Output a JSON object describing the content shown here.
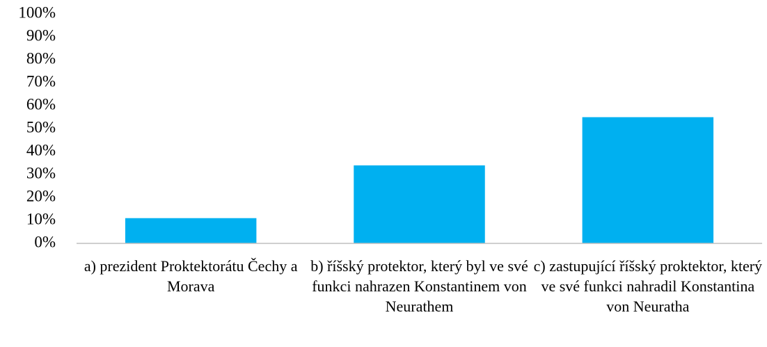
{
  "chart_data": {
    "type": "bar",
    "categories": [
      "a) prezident Proktektorátu Čechy a Morava",
      "b) říšský protektor, který byl ve své funkci nahrazen Konstantinem von Neurathem",
      "c) zastupující říšský proktektor, který ve své funkci nahradil Konstantina von Neuratha"
    ],
    "values": [
      11,
      34,
      55
    ],
    "color": "#00b0f0",
    "ylim": [
      0,
      100
    ],
    "yticks": [
      {
        "value": 0,
        "label": "0%"
      },
      {
        "value": 10,
        "label": "10%"
      },
      {
        "value": 20,
        "label": "20%"
      },
      {
        "value": 30,
        "label": "30%"
      },
      {
        "value": 40,
        "label": "40%"
      },
      {
        "value": 50,
        "label": "50%"
      },
      {
        "value": 60,
        "label": "60%"
      },
      {
        "value": 70,
        "label": "70%"
      },
      {
        "value": 80,
        "label": "80%"
      },
      {
        "value": 90,
        "label": "90%"
      },
      {
        "value": 100,
        "label": "100%"
      }
    ],
    "grid": false
  }
}
